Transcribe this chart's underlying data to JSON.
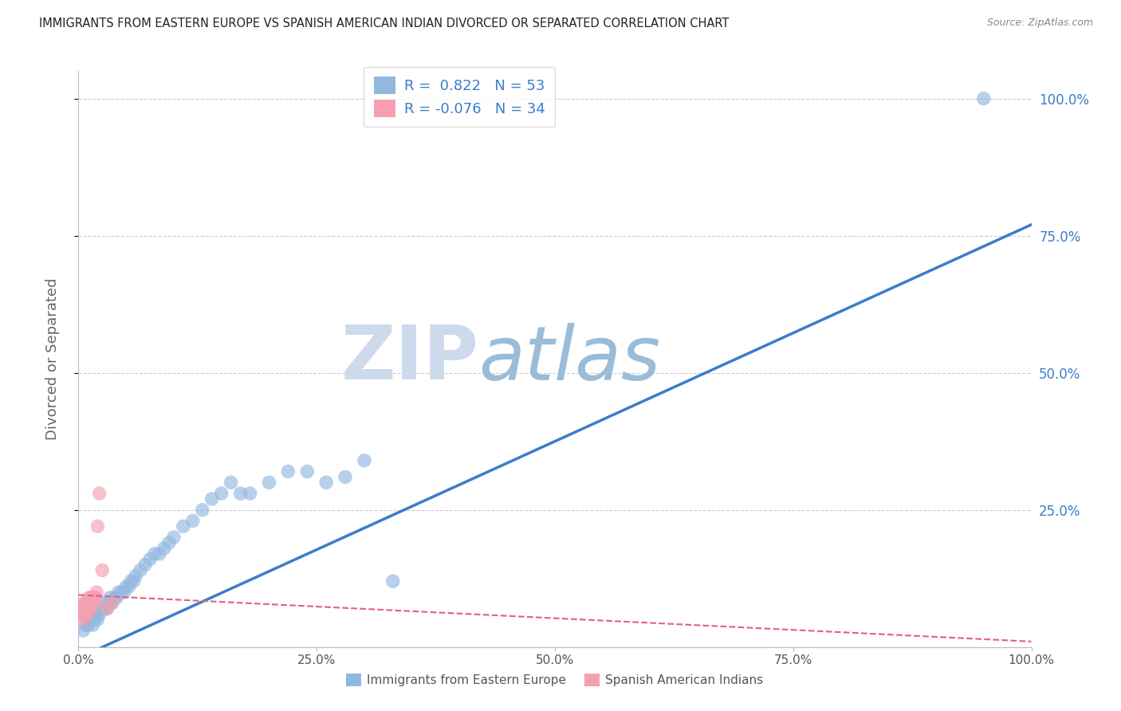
{
  "title": "IMMIGRANTS FROM EASTERN EUROPE VS SPANISH AMERICAN INDIAN DIVORCED OR SEPARATED CORRELATION CHART",
  "source": "Source: ZipAtlas.com",
  "ylabel": "Divorced or Separated",
  "xlabel": "",
  "blue_R": 0.822,
  "blue_N": 53,
  "pink_R": -0.076,
  "pink_N": 34,
  "blue_color": "#93b8e0",
  "blue_line_color": "#3a7dc9",
  "pink_color": "#f4a0b0",
  "pink_line_color": "#e06080",
  "background_color": "#ffffff",
  "watermark_zip_color": "#ccdaec",
  "watermark_atlas_color": "#9bbcd8",
  "legend_text_color": "#3a7dc9",
  "xlim": [
    0.0,
    1.0
  ],
  "ylim": [
    0.0,
    1.05
  ],
  "xticks": [
    0.0,
    0.25,
    0.5,
    0.75,
    1.0
  ],
  "xtick_labels": [
    "0.0%",
    "25.0%",
    "50.0%",
    "75.0%",
    "100.0%"
  ],
  "ytick_positions": [
    0.25,
    0.5,
    0.75,
    1.0
  ],
  "ytick_labels": [
    "25.0%",
    "50.0%",
    "75.0%",
    "100.0%"
  ],
  "blue_line_x0": 0.0,
  "blue_line_y0": -0.02,
  "blue_line_x1": 1.0,
  "blue_line_y1": 0.77,
  "pink_line_x0": 0.0,
  "pink_line_y0": 0.095,
  "pink_line_x1": 1.0,
  "pink_line_y1": 0.01,
  "blue_scatter_x": [
    0.005,
    0.008,
    0.01,
    0.012,
    0.015,
    0.015,
    0.017,
    0.018,
    0.019,
    0.02,
    0.022,
    0.023,
    0.025,
    0.027,
    0.028,
    0.03,
    0.032,
    0.033,
    0.035,
    0.038,
    0.04,
    0.042,
    0.045,
    0.048,
    0.05,
    0.053,
    0.055,
    0.058,
    0.06,
    0.065,
    0.07,
    0.075,
    0.08,
    0.085,
    0.09,
    0.095,
    0.1,
    0.11,
    0.12,
    0.13,
    0.14,
    0.15,
    0.16,
    0.17,
    0.18,
    0.2,
    0.22,
    0.24,
    0.26,
    0.28,
    0.3,
    0.33,
    0.95
  ],
  "blue_scatter_y": [
    0.03,
    0.04,
    0.04,
    0.05,
    0.04,
    0.06,
    0.05,
    0.06,
    0.06,
    0.05,
    0.06,
    0.07,
    0.07,
    0.07,
    0.08,
    0.07,
    0.08,
    0.09,
    0.08,
    0.09,
    0.09,
    0.1,
    0.1,
    0.1,
    0.11,
    0.11,
    0.12,
    0.12,
    0.13,
    0.14,
    0.15,
    0.16,
    0.17,
    0.17,
    0.18,
    0.19,
    0.2,
    0.22,
    0.23,
    0.25,
    0.27,
    0.28,
    0.3,
    0.28,
    0.28,
    0.3,
    0.32,
    0.32,
    0.3,
    0.31,
    0.34,
    0.12,
    1.0
  ],
  "pink_scatter_x": [
    0.002,
    0.003,
    0.004,
    0.004,
    0.005,
    0.005,
    0.006,
    0.006,
    0.007,
    0.007,
    0.007,
    0.008,
    0.008,
    0.009,
    0.009,
    0.01,
    0.01,
    0.011,
    0.011,
    0.012,
    0.012,
    0.013,
    0.013,
    0.014,
    0.015,
    0.016,
    0.017,
    0.018,
    0.019,
    0.02,
    0.022,
    0.025,
    0.03,
    0.035
  ],
  "pink_scatter_y": [
    0.06,
    0.07,
    0.06,
    0.07,
    0.05,
    0.08,
    0.06,
    0.07,
    0.06,
    0.07,
    0.08,
    0.07,
    0.08,
    0.06,
    0.08,
    0.07,
    0.08,
    0.07,
    0.09,
    0.07,
    0.08,
    0.07,
    0.09,
    0.08,
    0.08,
    0.08,
    0.09,
    0.09,
    0.1,
    0.22,
    0.28,
    0.14,
    0.07,
    0.08
  ]
}
